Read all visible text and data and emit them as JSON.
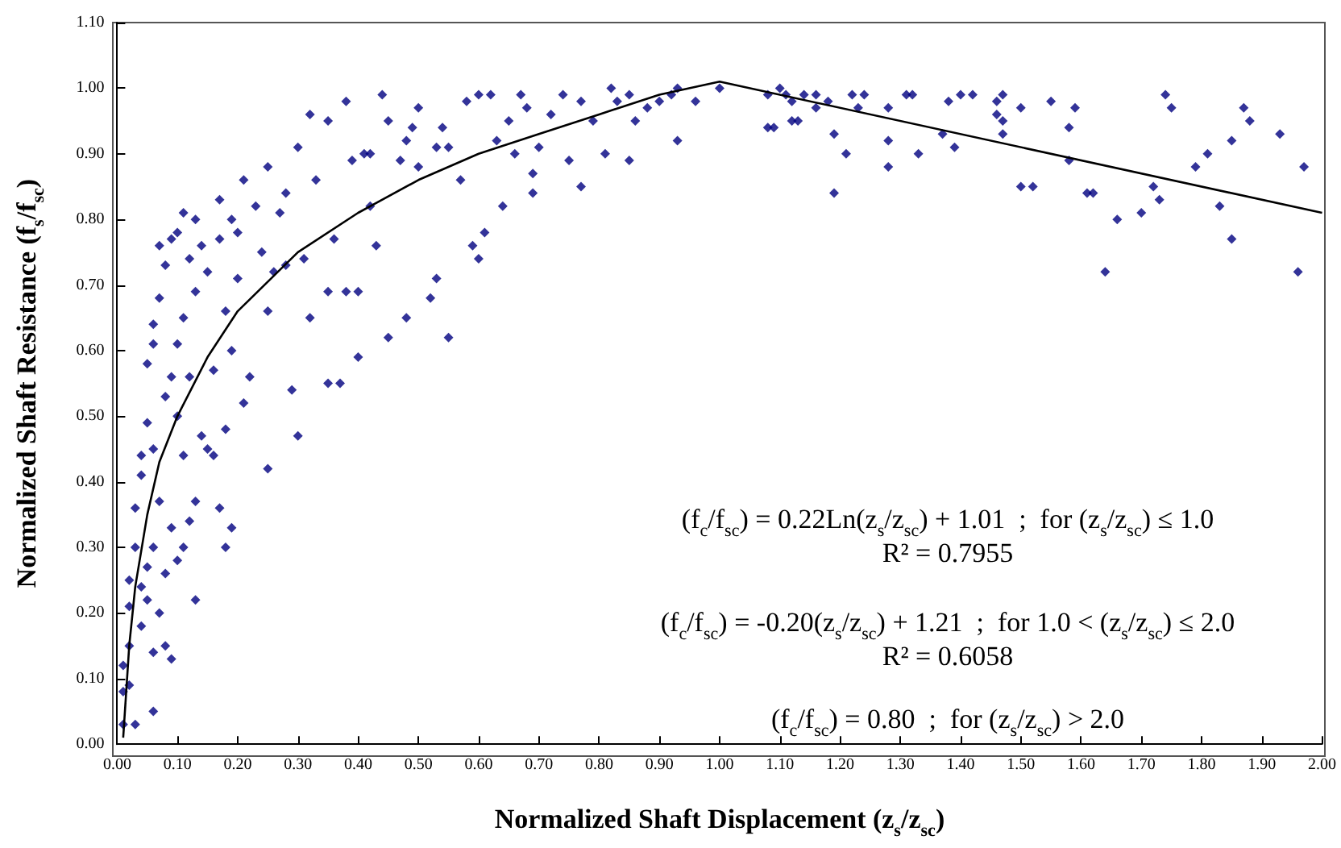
{
  "chart_data": {
    "type": "scatter",
    "xlabel": "Normalized Shaft Displacement (z$_{s}$/z$_{sc}$)",
    "ylabel": "Normalized Shaft Resistance (f$_{s}$/f$_{sc}$)",
    "xlim": [
      0,
      2
    ],
    "ylim": [
      0,
      1.1
    ],
    "xticks": [
      {
        "value": 0,
        "label": "0.00"
      },
      {
        "value": 0.1,
        "label": "0.10"
      },
      {
        "value": 0.2,
        "label": "0.20"
      },
      {
        "value": 0.3,
        "label": "0.30"
      },
      {
        "value": 0.4,
        "label": "0.40"
      },
      {
        "value": 0.5,
        "label": "0.50"
      },
      {
        "value": 0.6,
        "label": "0.60"
      },
      {
        "value": 0.7,
        "label": "0.70"
      },
      {
        "value": 0.8,
        "label": "0.80"
      },
      {
        "value": 0.9,
        "label": "0.90"
      },
      {
        "value": 1,
        "label": "1.00"
      },
      {
        "value": 1.1,
        "label": "1.10"
      },
      {
        "value": 1.2,
        "label": "1.20"
      },
      {
        "value": 1.3,
        "label": "1.30"
      },
      {
        "value": 1.4,
        "label": "1.40"
      },
      {
        "value": 1.5,
        "label": "1.50"
      },
      {
        "value": 1.6,
        "label": "1.60"
      },
      {
        "value": 1.7,
        "label": "1.70"
      },
      {
        "value": 1.8,
        "label": "1.80"
      },
      {
        "value": 1.9,
        "label": "1.90"
      },
      {
        "value": 2,
        "label": "2.00"
      }
    ],
    "yticks": [
      {
        "value": 0,
        "label": "0.00"
      },
      {
        "value": 0.1,
        "label": "0.10"
      },
      {
        "value": 0.2,
        "label": "0.20"
      },
      {
        "value": 0.3,
        "label": "0.30"
      },
      {
        "value": 0.4,
        "label": "0.40"
      },
      {
        "value": 0.5,
        "label": "0.50"
      },
      {
        "value": 0.6,
        "label": "0.60"
      },
      {
        "value": 0.7,
        "label": "0.70"
      },
      {
        "value": 0.8,
        "label": "0.80"
      },
      {
        "value": 0.9,
        "label": "0.90"
      },
      {
        "value": 1,
        "label": "1.00"
      },
      {
        "value": 1.1,
        "label": "1.10"
      }
    ],
    "grid": false,
    "marker": "diamond",
    "series": [
      {
        "type": "scatter",
        "color": "#000080",
        "x": [
          0.01,
          0.01,
          0.01,
          0.02,
          0.02,
          0.02,
          0.02,
          0.03,
          0.03,
          0.03,
          0.04,
          0.04,
          0.04,
          0.04,
          0.05,
          0.05,
          0.05,
          0.05,
          0.06,
          0.06,
          0.06,
          0.06,
          0.06,
          0.06,
          0.07,
          0.07,
          0.07,
          0.07,
          0.08,
          0.08,
          0.08,
          0.08,
          0.09,
          0.09,
          0.09,
          0.09,
          0.1,
          0.1,
          0.1,
          0.1,
          0.11,
          0.11,
          0.11,
          0.11,
          0.12,
          0.12,
          0.12,
          0.13,
          0.13,
          0.13,
          0.13,
          0.14,
          0.14,
          0.15,
          0.15,
          0.16,
          0.16,
          0.17,
          0.17,
          0.17,
          0.18,
          0.18,
          0.18,
          0.19,
          0.19,
          0.19,
          0.2,
          0.2,
          0.21,
          0.21,
          0.22,
          0.23,
          0.24,
          0.25,
          0.25,
          0.25,
          0.26,
          0.27,
          0.28,
          0.28,
          0.29,
          0.3,
          0.3,
          0.31,
          0.32,
          0.32,
          0.33,
          0.35,
          0.35,
          0.35,
          0.36,
          0.37,
          0.38,
          0.38,
          0.39,
          0.4,
          0.4,
          0.41,
          0.42,
          0.44,
          0.45,
          0.42,
          0.43,
          0.45,
          0.47,
          0.48,
          0.49,
          0.5,
          0.5,
          0.48,
          0.52,
          0.53,
          0.55,
          0.53,
          0.54,
          0.55,
          0.57,
          0.58,
          0.59,
          0.6,
          0.6,
          0.61,
          0.62,
          0.63,
          0.64,
          0.65,
          0.66,
          0.67,
          0.68,
          0.69,
          0.69,
          0.7,
          0.72,
          0.74,
          0.75,
          0.77,
          0.77,
          0.79,
          0.81,
          0.82,
          0.83,
          0.85,
          0.85,
          0.86,
          0.88,
          0.9,
          0.92,
          0.93,
          0.93,
          0.96,
          1.0,
          1.08,
          1.08,
          1.09,
          1.1,
          1.11,
          1.12,
          1.12,
          1.13,
          1.14,
          1.16,
          1.16,
          1.18,
          1.19,
          1.19,
          1.21,
          1.22,
          1.23,
          1.24,
          1.28,
          1.28,
          1.28,
          1.31,
          1.32,
          1.33,
          1.37,
          1.38,
          1.39,
          1.4,
          1.42,
          1.46,
          1.46,
          1.47,
          1.47,
          1.47,
          1.5,
          1.5,
          1.52,
          1.55,
          1.58,
          1.58,
          1.59,
          1.61,
          1.62,
          1.64,
          1.66,
          1.7,
          1.72,
          1.73,
          1.74,
          1.75,
          1.79,
          1.81,
          1.83,
          1.85,
          1.85,
          1.87,
          1.88,
          1.93,
          1.96,
          1.97
        ],
        "values": [
          0.03,
          0.08,
          0.12,
          0.09,
          0.15,
          0.21,
          0.25,
          0.03,
          0.3,
          0.36,
          0.18,
          0.24,
          0.41,
          0.44,
          0.22,
          0.27,
          0.49,
          0.58,
          0.05,
          0.14,
          0.3,
          0.45,
          0.61,
          0.64,
          0.2,
          0.37,
          0.68,
          0.76,
          0.15,
          0.26,
          0.53,
          0.73,
          0.13,
          0.33,
          0.56,
          0.77,
          0.28,
          0.5,
          0.61,
          0.78,
          0.3,
          0.44,
          0.65,
          0.81,
          0.34,
          0.56,
          0.74,
          0.22,
          0.37,
          0.69,
          0.8,
          0.47,
          0.76,
          0.45,
          0.72,
          0.44,
          0.57,
          0.36,
          0.77,
          0.83,
          0.3,
          0.48,
          0.66,
          0.33,
          0.6,
          0.8,
          0.71,
          0.78,
          0.52,
          0.86,
          0.56,
          0.82,
          0.75,
          0.42,
          0.66,
          0.88,
          0.72,
          0.81,
          0.84,
          0.73,
          0.54,
          0.47,
          0.91,
          0.74,
          0.65,
          0.96,
          0.86,
          0.55,
          0.69,
          0.95,
          0.77,
          0.55,
          0.98,
          0.69,
          0.89,
          0.59,
          0.69,
          0.9,
          0.82,
          0.99,
          0.95,
          0.9,
          0.76,
          0.62,
          0.89,
          0.92,
          0.94,
          0.97,
          0.88,
          0.65,
          0.68,
          0.71,
          0.62,
          0.91,
          0.94,
          0.91,
          0.86,
          0.98,
          0.76,
          0.74,
          0.99,
          0.78,
          0.99,
          0.92,
          0.82,
          0.95,
          0.9,
          0.99,
          0.97,
          0.84,
          0.87,
          0.91,
          0.96,
          0.99,
          0.89,
          0.98,
          0.85,
          0.95,
          0.9,
          1.0,
          0.98,
          0.99,
          0.89,
          0.95,
          0.97,
          0.98,
          0.99,
          0.92,
          1.0,
          0.98,
          1.0,
          0.99,
          0.94,
          0.94,
          1.0,
          0.99,
          0.98,
          0.95,
          0.95,
          0.99,
          0.99,
          0.97,
          0.98,
          0.93,
          0.84,
          0.9,
          0.99,
          0.97,
          0.99,
          0.97,
          0.92,
          0.88,
          0.99,
          0.99,
          0.9,
          0.93,
          0.98,
          0.91,
          0.99,
          0.99,
          0.98,
          0.96,
          0.99,
          0.95,
          0.93,
          0.97,
          0.85,
          0.85,
          0.98,
          0.94,
          0.89,
          0.97,
          0.84,
          0.84,
          0.72,
          0.8,
          0.81,
          0.85,
          0.83,
          0.99,
          0.97,
          0.88,
          0.9,
          0.82,
          0.92,
          0.77,
          0.97,
          0.95,
          0.93,
          0.72,
          0.88
        ]
      },
      {
        "type": "line",
        "color": "#000000",
        "marker": "none",
        "line_style": "solid",
        "x": [
          0.01,
          0.02,
          0.03,
          0.05,
          0.07,
          0.1,
          0.15,
          0.2,
          0.3,
          0.4,
          0.5,
          0.6,
          0.7,
          0.8,
          0.9,
          1.0,
          2.0
        ],
        "values": [
          0.01,
          0.15,
          0.24,
          0.35,
          0.43,
          0.5,
          0.59,
          0.66,
          0.75,
          0.81,
          0.86,
          0.9,
          0.93,
          0.96,
          0.99,
          1.01,
          0.81
        ]
      }
    ],
    "annotations": [
      "(f$_{c}$/f$_{sc}$) = 0.22Ln(z$_{s}$/z$_{sc}$) + 1.01  ;  for (z$_{s}$/z$_{sc}$) ≤ 1.0",
      "R² = 0.7955",
      "(f$_{c}$/f$_{sc}$) = -0.20(z$_{s}$/z$_{sc}$) + 1.21  ;  for 1.0 < (z$_{s}$/z$_{sc}$) ≤ 2.0",
      "R² = 0.6058",
      "(f$_{c}$/f$_{sc}$) = 0.80  ;  for (z$_{s}$/z$_{sc}$) > 2.0"
    ]
  }
}
